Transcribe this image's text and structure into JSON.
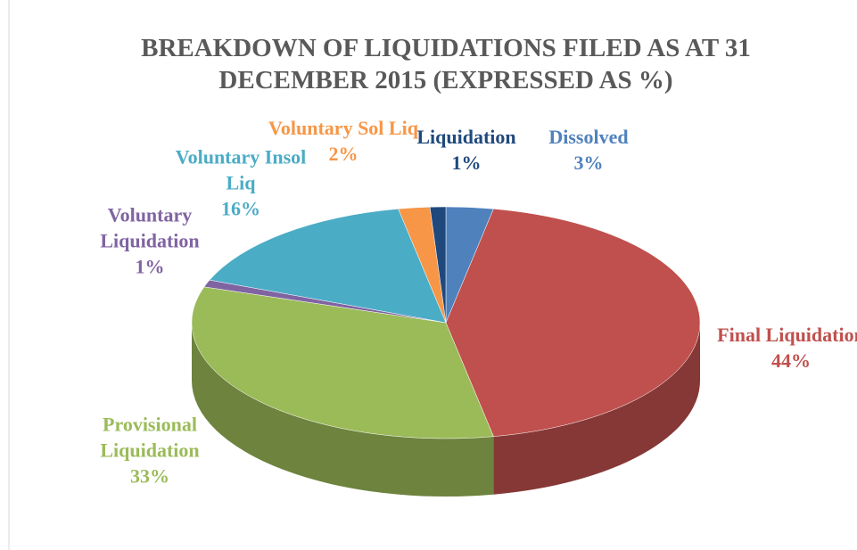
{
  "chart_data": {
    "type": "pie",
    "title": "BREAKDOWN OF LIQUIDATIONS FILED AS AT 31 DECEMBER 2015 (EXPRESSED AS %)",
    "categories": [
      "Dissolved",
      "Final Liquidation",
      "Provisional Liquidation",
      "Voluntary Liquidation",
      "Voluntary Insol Liq",
      "Voluntary Sol Liq",
      "Liquidation"
    ],
    "values": [
      3,
      44,
      33,
      1,
      16,
      2,
      1
    ],
    "value_labels": [
      "3%",
      "44%",
      "33%",
      "1%",
      "16%",
      "2%",
      "1%"
    ],
    "colors": [
      "#4f81bd",
      "#c0504d",
      "#9bbb59",
      "#8064a2",
      "#4bacc6",
      "#f79646",
      "#1f497d"
    ]
  }
}
